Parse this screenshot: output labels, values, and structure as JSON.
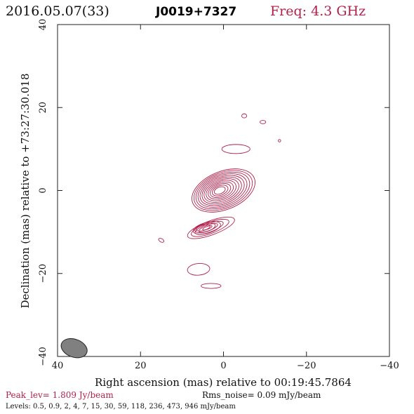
{
  "header": {
    "date": "2016.05.07(33)",
    "source": "J0019+7327",
    "freq": "Freq: 4.3 GHz"
  },
  "footer": {
    "peak": "Peak_lev=  1.809 Jy/beam",
    "rms": "Rms_noise= 0.09 mJy/beam",
    "levels": "Levels: 0.5, 0.9,   2,   4,   7,  15,  30,  59, 118, 236, 473, 946 mJy/beam"
  },
  "colors": {
    "contour": "#b0204a",
    "beam": "#808080"
  },
  "chart_data": {
    "type": "contour",
    "xlabel": "Right ascension (mas) relative to 00:19:45.7864",
    "ylabel": "Declination (mas) relative to +73:27:30.018",
    "xlim": [
      40,
      -40
    ],
    "ylim": [
      -40,
      40
    ],
    "x_ticks": [
      40,
      20,
      0,
      -20,
      -40
    ],
    "x_tick_labels": [
      "40",
      "20",
      "0",
      "−20",
      "−40"
    ],
    "y_ticks": [
      -40,
      -20,
      0,
      20,
      40
    ],
    "y_tick_labels": [
      "−40",
      "−20",
      "0",
      "20",
      "40"
    ],
    "peak_jy_per_beam": 1.809,
    "rms_noise_mjy_per_beam": 0.09,
    "levels_mjy_per_beam": [
      0.5,
      0.9,
      2,
      4,
      7,
      15,
      30,
      59,
      118,
      236,
      473,
      946
    ],
    "beam": {
      "center": [
        36,
        -38
      ],
      "major": 3.6,
      "minor": 2.4,
      "pa_deg": -20
    },
    "components": [
      {
        "center": [
          0,
          0
        ],
        "levels": 12
      },
      {
        "center": [
          3,
          -9
        ],
        "levels": 5
      },
      {
        "center": [
          4,
          -9
        ],
        "levels": 3
      },
      {
        "center": [
          -3,
          10
        ],
        "levels": 1
      },
      {
        "center": [
          6,
          -19
        ],
        "levels": 1
      },
      {
        "center": [
          3,
          -23
        ],
        "levels": 1
      },
      {
        "center": [
          -5,
          18
        ],
        "levels": 1
      },
      {
        "center": [
          -9.5,
          16.5
        ],
        "levels": 1
      },
      {
        "center": [
          -13.5,
          12
        ],
        "levels": 1
      },
      {
        "center": [
          15,
          -12
        ],
        "levels": 1
      }
    ]
  }
}
